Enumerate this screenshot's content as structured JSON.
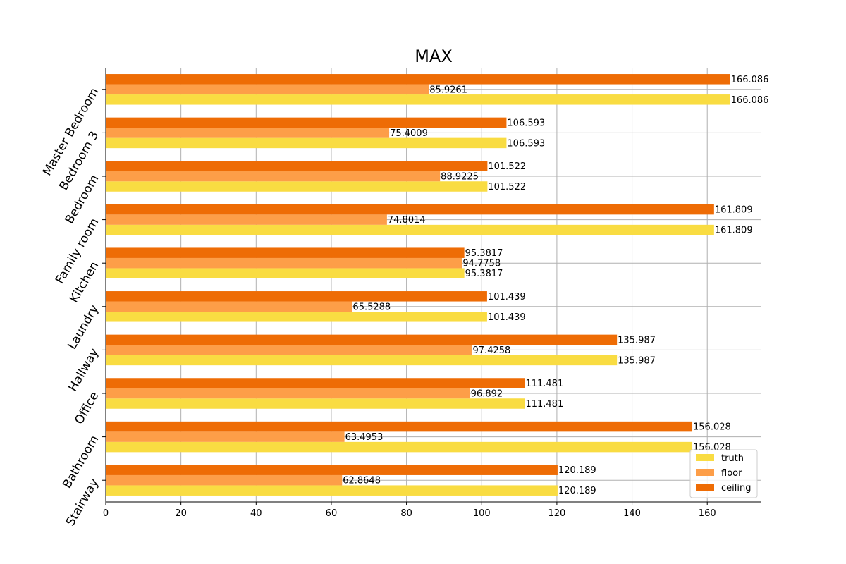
{
  "chart_data": {
    "type": "bar",
    "orientation": "horizontal",
    "title": "MAX",
    "xlabel": "",
    "ylabel": "",
    "xlim": [
      0,
      174.4
    ],
    "xticks": [
      0,
      20,
      40,
      60,
      80,
      100,
      120,
      140,
      160
    ],
    "grid": true,
    "legend_position": "bottom-right",
    "categories": [
      "Master Bedroom",
      "Bedroom 3",
      "Bedroom",
      "Family room",
      "Kitchen",
      "Laundry",
      "Hallway",
      "Office",
      "Bathroom",
      "Stairway"
    ],
    "series": [
      {
        "name": "truth",
        "color": "#f9dc42",
        "values": [
          166.086,
          106.593,
          101.522,
          161.809,
          95.3817,
          101.439,
          135.987,
          111.481,
          156.028,
          120.189
        ],
        "labels": [
          "166.086",
          "106.593",
          "101.522",
          "161.809",
          "95.3817",
          "101.439",
          "135.987",
          "111.481",
          "156.028",
          "120.189"
        ]
      },
      {
        "name": "floor",
        "color": "#fd9e48",
        "values": [
          85.9261,
          75.4009,
          88.9225,
          74.8014,
          94.7758,
          65.5288,
          97.4258,
          96.892,
          63.4953,
          62.8648
        ],
        "labels": [
          "85.9261",
          "75.4009",
          "88.9225",
          "74.8014",
          "94.7758",
          "65.5288",
          "97.4258",
          "96.892",
          "63.4953",
          "62.8648"
        ]
      },
      {
        "name": "ceiling",
        "color": "#ee6c05",
        "values": [
          166.086,
          106.593,
          101.522,
          161.809,
          95.3817,
          101.439,
          135.987,
          111.481,
          156.028,
          120.189
        ],
        "labels": [
          "166.086",
          "106.593",
          "101.522",
          "161.809",
          "95.3817",
          "101.439",
          "135.987",
          "111.481",
          "156.028",
          "120.189"
        ]
      }
    ]
  }
}
